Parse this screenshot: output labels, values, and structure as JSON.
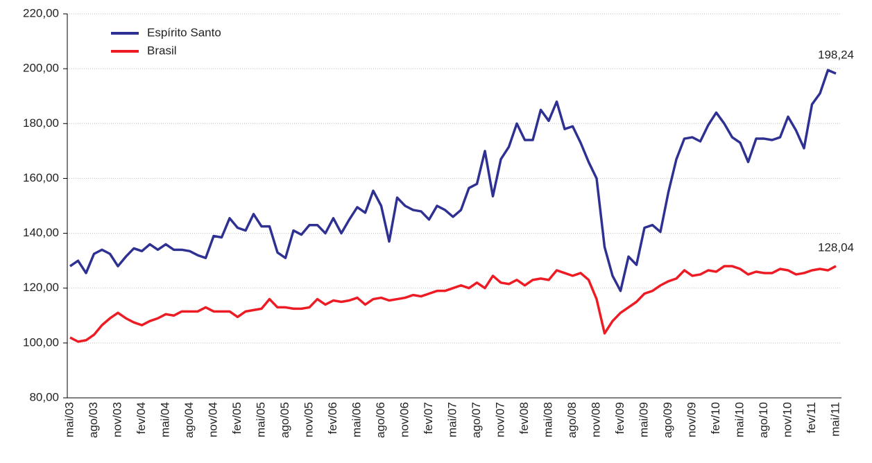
{
  "chart_data": {
    "type": "line",
    "categories": [
      "mai/03",
      null,
      null,
      "ago/03",
      null,
      null,
      "nov/03",
      null,
      null,
      "fev/04",
      null,
      null,
      "mai/04",
      null,
      null,
      "ago/04",
      null,
      null,
      "nov/04",
      null,
      null,
      "fev/05",
      null,
      null,
      "mai/05",
      null,
      null,
      "ago/05",
      null,
      null,
      "nov/05",
      null,
      null,
      "fev/06",
      null,
      null,
      "mai/06",
      null,
      null,
      "ago/06",
      null,
      null,
      "nov/06",
      null,
      null,
      "fev/07",
      null,
      null,
      "mai/07",
      null,
      null,
      "ago/07",
      null,
      null,
      "nov/07",
      null,
      null,
      "fev/08",
      null,
      null,
      "mai/08",
      null,
      null,
      "ago/08",
      null,
      null,
      "nov/08",
      null,
      null,
      "fev/09",
      null,
      null,
      "mai/09",
      null,
      null,
      "ago/09",
      null,
      null,
      "nov/09",
      null,
      null,
      "fev/10",
      null,
      null,
      "mai/10",
      null,
      null,
      "ago/10",
      null,
      null,
      "nov/10",
      null,
      null,
      "fev/11",
      null,
      null,
      "mai/11"
    ],
    "series": [
      {
        "name": "Espírito Santo",
        "color": "#2e3192",
        "values": [
          128,
          130,
          125.5,
          132.5,
          134,
          132.5,
          128,
          131.5,
          134.5,
          133.5,
          136,
          134,
          136,
          134,
          134,
          133.5,
          132,
          131,
          139,
          138.5,
          145.5,
          142,
          141,
          147,
          142.5,
          142.5,
          133,
          131,
          141,
          139.5,
          143,
          143,
          140,
          145.5,
          140,
          145,
          149.5,
          147.5,
          155.5,
          150,
          137,
          153,
          150,
          148.5,
          148,
          145,
          150,
          148.5,
          146,
          148.5,
          156.5,
          158,
          170,
          153.5,
          167,
          171.5,
          180,
          174,
          174,
          185,
          181,
          188,
          178,
          179,
          173,
          166,
          160,
          135,
          124.5,
          119,
          131.5,
          128.5,
          142,
          143,
          140.5,
          155,
          167,
          174.5,
          175,
          173.5,
          179.5,
          184,
          180,
          175,
          173,
          166,
          174.5,
          174.5,
          174,
          175,
          182.5,
          177.5,
          171,
          187,
          191,
          199.5,
          198.24
        ],
        "value_labels": [
          null,
          null,
          null,
          null,
          null,
          null,
          null,
          null,
          null,
          null,
          null,
          null,
          null,
          null,
          null,
          null,
          null,
          null,
          null,
          null,
          null,
          null,
          null,
          null,
          null,
          null,
          null,
          null,
          null,
          null,
          null,
          null,
          null,
          null,
          null,
          null,
          null,
          null,
          null,
          null,
          null,
          null,
          null,
          null,
          null,
          null,
          null,
          null,
          null,
          null,
          null,
          null,
          null,
          null,
          null,
          null,
          null,
          null,
          null,
          null,
          null,
          null,
          null,
          null,
          null,
          null,
          null,
          null,
          null,
          null,
          null,
          null,
          null,
          null,
          null,
          null,
          null,
          null,
          null,
          null,
          null,
          null,
          null,
          null,
          null,
          null,
          null,
          null,
          null,
          null,
          null,
          null,
          null,
          null,
          null,
          null,
          "198,24"
        ]
      },
      {
        "name": "Brasil",
        "color": "#ed1c24",
        "values": [
          102,
          100.5,
          101,
          103,
          106.5,
          109,
          111,
          109,
          107.5,
          106.5,
          108,
          109,
          110.5,
          110,
          111.5,
          111.5,
          111.5,
          113,
          111.5,
          111.5,
          111.5,
          109.5,
          111.5,
          112,
          112.5,
          116,
          113,
          113,
          112.5,
          112.5,
          113,
          116,
          114,
          115.5,
          115,
          115.5,
          116.5,
          114,
          116,
          116.5,
          115.5,
          116,
          116.5,
          117.5,
          117,
          118,
          119,
          119,
          120,
          121,
          120,
          122,
          120,
          124.5,
          122,
          121.5,
          123,
          121,
          123,
          123.5,
          123,
          126.5,
          125.5,
          124.5,
          125.5,
          123,
          116,
          103.5,
          108,
          111,
          113,
          115,
          118,
          119,
          121,
          122.5,
          123.5,
          126.5,
          124.5,
          125,
          126.5,
          126,
          128,
          128,
          127,
          125,
          126,
          125.5,
          125.5,
          127,
          126.5,
          125,
          125.5,
          126.5,
          127,
          126.5,
          128.04
        ],
        "value_labels": [
          null,
          null,
          null,
          null,
          null,
          null,
          null,
          null,
          null,
          null,
          null,
          null,
          null,
          null,
          null,
          null,
          null,
          null,
          null,
          null,
          null,
          null,
          null,
          null,
          null,
          null,
          null,
          null,
          null,
          null,
          null,
          null,
          null,
          null,
          null,
          null,
          null,
          null,
          null,
          null,
          null,
          null,
          null,
          null,
          null,
          null,
          null,
          null,
          null,
          null,
          null,
          null,
          null,
          null,
          null,
          null,
          null,
          null,
          null,
          null,
          null,
          null,
          null,
          null,
          null,
          null,
          null,
          null,
          null,
          null,
          null,
          null,
          null,
          null,
          null,
          null,
          null,
          null,
          null,
          null,
          null,
          null,
          null,
          null,
          null,
          null,
          null,
          null,
          null,
          null,
          null,
          null,
          null,
          null,
          null,
          null,
          "128,04"
        ]
      }
    ],
    "ylim": [
      80,
      220
    ],
    "yticks": [
      {
        "value": 80,
        "label": "80,00"
      },
      {
        "value": 100,
        "label": "100,00"
      },
      {
        "value": 120,
        "label": "120,00"
      },
      {
        "value": 140,
        "label": "140,00"
      },
      {
        "value": 160,
        "label": "160,00"
      },
      {
        "value": 180,
        "label": "180,00"
      },
      {
        "value": 200,
        "label": "200,00"
      },
      {
        "value": 220,
        "label": "220,00"
      }
    ],
    "grid": true,
    "legend": "upper left"
  }
}
